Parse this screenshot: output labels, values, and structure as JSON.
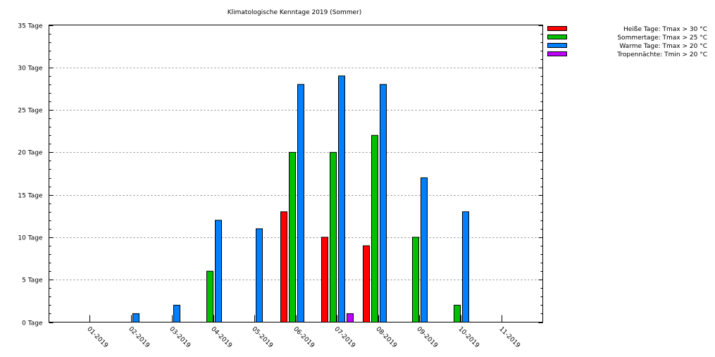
{
  "chart_data": {
    "type": "bar",
    "title": "Klimatologische Kenntage 2019 (Sommer)",
    "categories": [
      "01-2019",
      "02-2019",
      "03-2019",
      "04-2019",
      "05-2019",
      "06-2019",
      "07-2019",
      "08-2019",
      "09-2019",
      "10-2019",
      "11-2019"
    ],
    "ylim": [
      0,
      35
    ],
    "yticks": [
      0,
      5,
      10,
      15,
      20,
      25,
      30,
      35
    ],
    "ytick_suffix": " Tage",
    "grid": "horizontal dotted",
    "legend_position": "top-right",
    "series": [
      {
        "name": "Heiße Tage: Tmax > 30 °C",
        "color": "#ff0000",
        "values": [
          0,
          0,
          0,
          0,
          0,
          13,
          10,
          9,
          0,
          0,
          0
        ]
      },
      {
        "name": "Sommertage: Tmax > 25 °C",
        "color": "#00c000",
        "values": [
          0,
          0,
          0,
          6,
          0,
          20,
          20,
          22,
          10,
          2,
          0
        ]
      },
      {
        "name": "Warme Tage: Tmax > 20 °C",
        "color": "#0080ff",
        "values": [
          0,
          1,
          2,
          12,
          11,
          28,
          29,
          28,
          17,
          13,
          0
        ]
      },
      {
        "name": "Tropennächte: Tmin > 20 °C",
        "color": "#c000ff",
        "values": [
          0,
          0,
          0,
          0,
          0,
          0,
          1,
          0,
          0,
          0,
          0
        ]
      }
    ]
  }
}
